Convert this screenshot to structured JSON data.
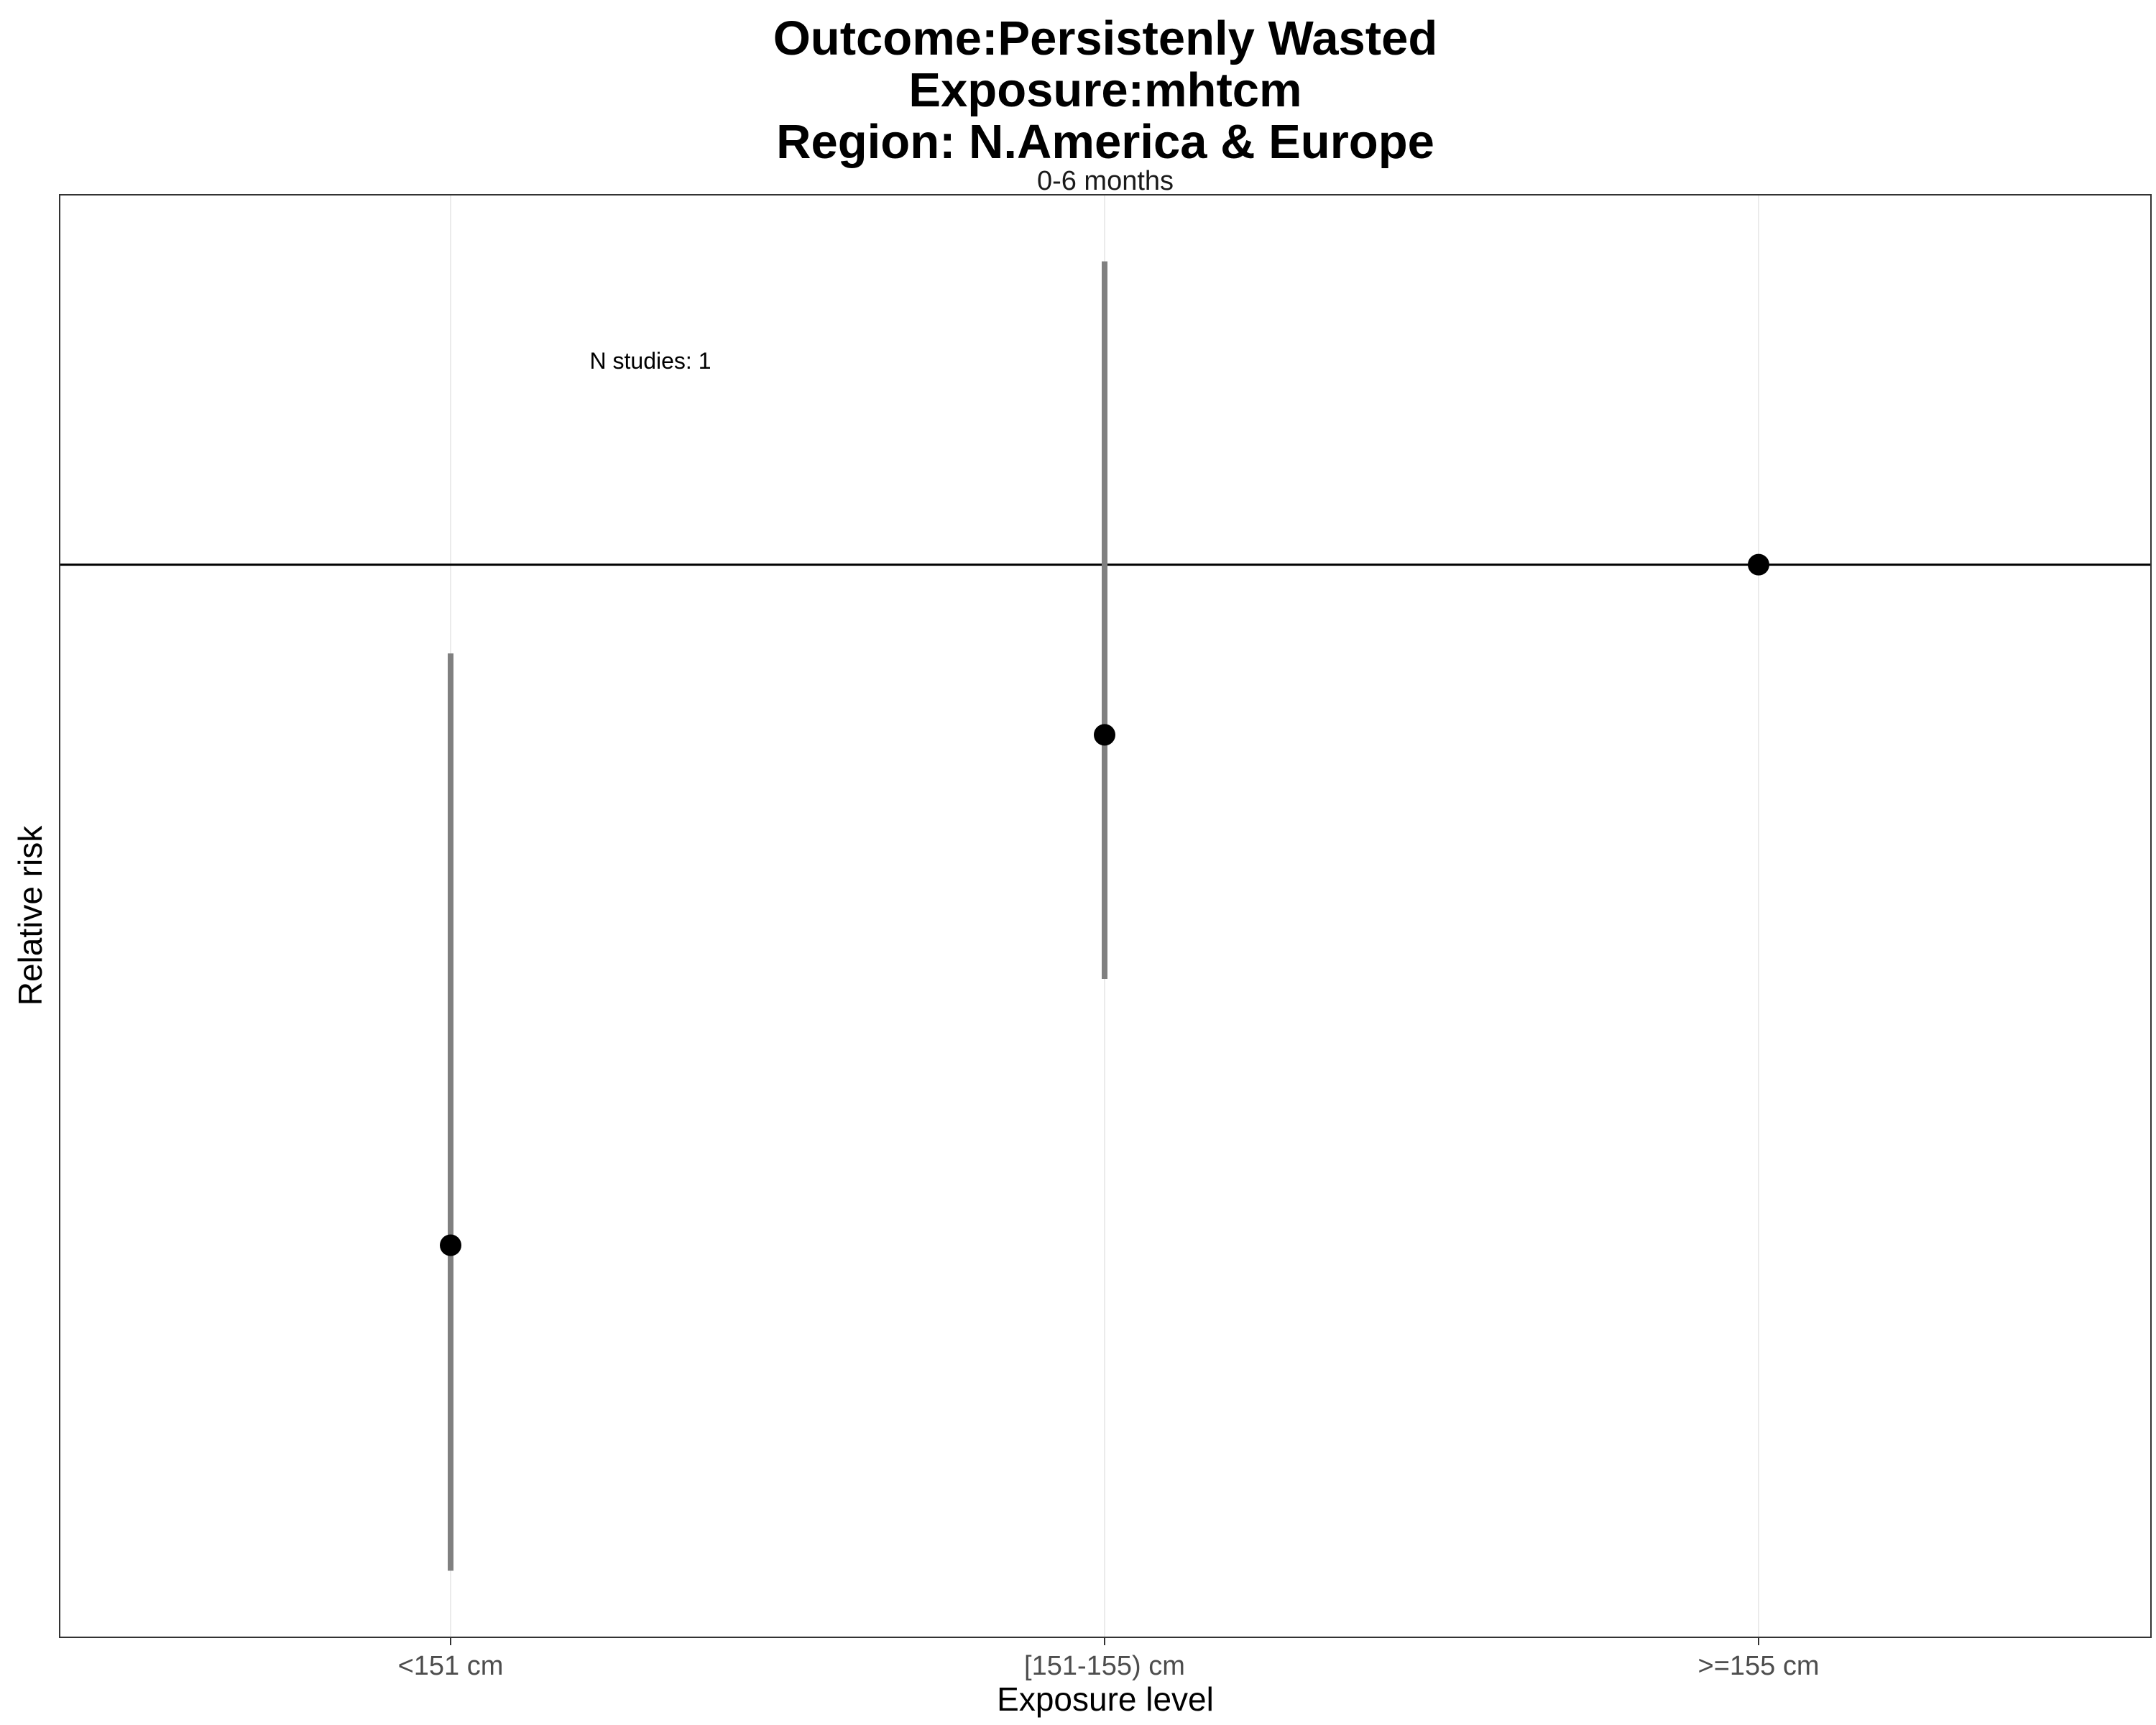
{
  "chart_data": {
    "type": "scatter",
    "title_lines": [
      "Outcome:Persistenly Wasted",
      "Exposure:mhtcm",
      "Region: N.America & Europe"
    ],
    "facet_label": "0-6 months",
    "xlabel": "Exposure level",
    "ylabel": "Relative risk",
    "categories": [
      "<151 cm",
      "[151-155) cm",
      ">=155 cm"
    ],
    "series": [
      {
        "points": [
          {
            "category": "<151 cm",
            "estimate": 0.63,
            "ci_lower": 0.19,
            "ci_upper": 1.43
          },
          {
            "category": "[151-155) cm",
            "estimate": 1.32,
            "ci_lower": 0.99,
            "ci_upper": 1.96
          },
          {
            "category": ">=155 cm",
            "estimate": 1.55,
            "ci_lower": null,
            "ci_upper": null
          }
        ]
      }
    ],
    "reference_line": 1.55,
    "annotation": "N studies: 1",
    "ylim": [
      0.1,
      2.05
    ],
    "y_ticks_shown": false,
    "grid": true,
    "colors": {
      "point": "#000000",
      "ci": "#808080",
      "reference": "#000000",
      "grid": "#ebebeb",
      "panel_border": "#333333"
    }
  }
}
